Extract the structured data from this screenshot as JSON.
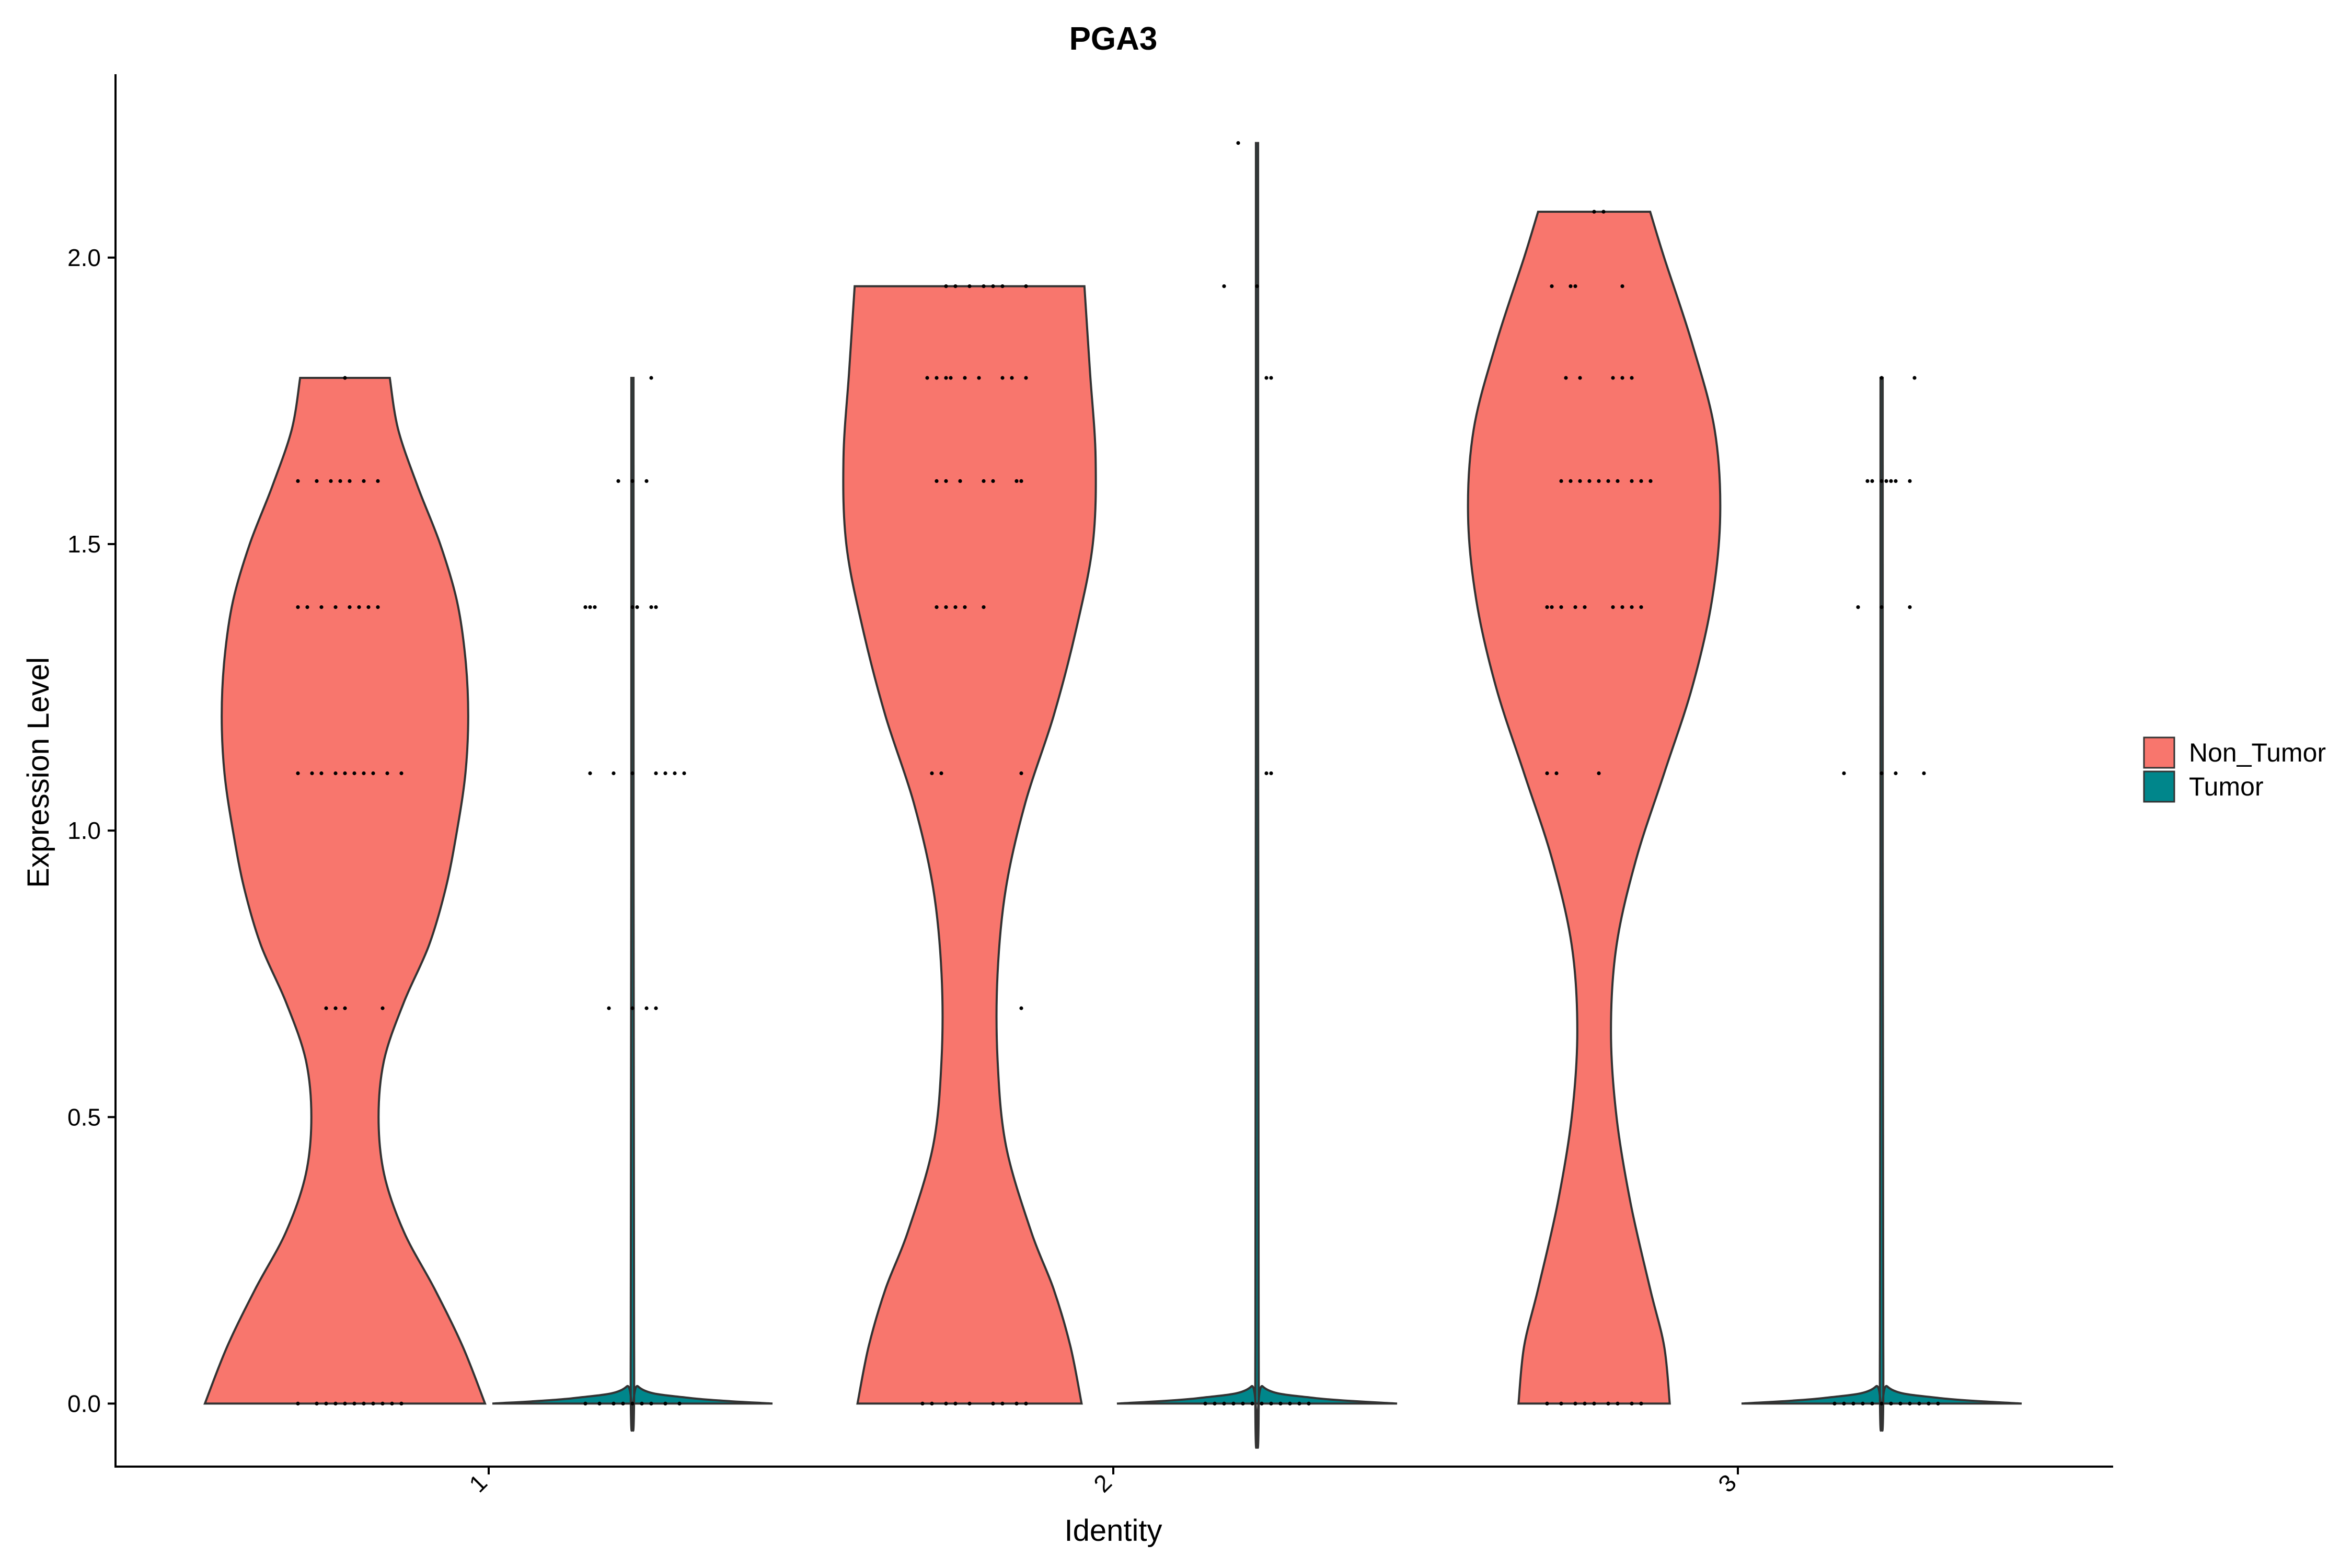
{
  "chart_data": {
    "type": "violin",
    "title": "PGA3",
    "xlabel": "Identity",
    "ylabel": "Expression Level",
    "categories": [
      "1",
      "2",
      "3"
    ],
    "yticks": [
      "0.0",
      "0.5",
      "1.0",
      "1.5",
      "2.0"
    ],
    "ylim": [
      -0.11,
      2.32
    ],
    "grid": false,
    "legend_position": "right",
    "legend": [
      {
        "name": "Non_Tumor",
        "color": "#F8766D"
      },
      {
        "name": "Tumor",
        "color": "#00868B"
      }
    ],
    "groups": [
      {
        "category": "1",
        "series": "Non_Tumor",
        "max": 1.79,
        "density": [
          [
            0.0,
            0.5
          ],
          [
            0.1,
            0.42
          ],
          [
            0.2,
            0.32
          ],
          [
            0.3,
            0.21
          ],
          [
            0.4,
            0.14
          ],
          [
            0.5,
            0.12
          ],
          [
            0.6,
            0.14
          ],
          [
            0.7,
            0.21
          ],
          [
            0.8,
            0.3
          ],
          [
            0.9,
            0.36
          ],
          [
            1.0,
            0.4
          ],
          [
            1.1,
            0.43
          ],
          [
            1.2,
            0.44
          ],
          [
            1.3,
            0.43
          ],
          [
            1.4,
            0.4
          ],
          [
            1.5,
            0.34
          ],
          [
            1.6,
            0.26
          ],
          [
            1.7,
            0.19
          ],
          [
            1.79,
            0.16
          ]
        ],
        "points": [
          [
            0.0,
            -0.1
          ],
          [
            0.0,
            -0.06
          ],
          [
            0.0,
            -0.04
          ],
          [
            0.0,
            -0.02
          ],
          [
            0.0,
            0.0
          ],
          [
            0.0,
            0.02
          ],
          [
            0.0,
            0.04
          ],
          [
            0.0,
            0.06
          ],
          [
            0.0,
            0.08
          ],
          [
            0.0,
            0.1
          ],
          [
            0.0,
            0.12
          ],
          [
            0.69,
            -0.04
          ],
          [
            0.69,
            -0.02
          ],
          [
            0.69,
            0.0
          ],
          [
            0.69,
            0.08
          ],
          [
            1.1,
            -0.1
          ],
          [
            1.1,
            -0.07
          ],
          [
            1.1,
            -0.05
          ],
          [
            1.1,
            -0.02
          ],
          [
            1.1,
            0.0
          ],
          [
            1.1,
            0.02
          ],
          [
            1.1,
            0.04
          ],
          [
            1.1,
            0.06
          ],
          [
            1.1,
            0.09
          ],
          [
            1.1,
            0.12
          ],
          [
            1.39,
            -0.1
          ],
          [
            1.39,
            -0.08
          ],
          [
            1.39,
            -0.05
          ],
          [
            1.39,
            -0.02
          ],
          [
            1.39,
            0.01
          ],
          [
            1.39,
            0.03
          ],
          [
            1.39,
            0.05
          ],
          [
            1.39,
            0.07
          ],
          [
            1.61,
            -0.1
          ],
          [
            1.61,
            -0.06
          ],
          [
            1.61,
            -0.03
          ],
          [
            1.61,
            -0.01
          ],
          [
            1.61,
            0.01
          ],
          [
            1.61,
            0.04
          ],
          [
            1.61,
            0.07
          ],
          [
            1.79,
            0.0
          ]
        ]
      },
      {
        "category": "1",
        "series": "Tumor",
        "max": 1.79,
        "density": [
          [
            0.0,
            0.5
          ],
          [
            0.01,
            0.2
          ],
          [
            0.03,
            0.02
          ],
          [
            0.1,
            0.006
          ],
          [
            1.79,
            0.004
          ]
        ],
        "points": [
          [
            0.0,
            -0.1
          ],
          [
            0.0,
            -0.07
          ],
          [
            0.0,
            -0.04
          ],
          [
            0.0,
            -0.02
          ],
          [
            0.0,
            0.0
          ],
          [
            0.0,
            0.02
          ],
          [
            0.0,
            0.04
          ],
          [
            0.0,
            0.07
          ],
          [
            0.0,
            0.1
          ],
          [
            0.69,
            -0.05
          ],
          [
            0.69,
            0.0
          ],
          [
            0.69,
            0.03
          ],
          [
            0.69,
            0.05
          ],
          [
            1.1,
            -0.09
          ],
          [
            1.1,
            -0.04
          ],
          [
            1.1,
            0.0
          ],
          [
            1.1,
            0.05
          ],
          [
            1.1,
            0.07
          ],
          [
            1.1,
            0.09
          ],
          [
            1.1,
            0.11
          ],
          [
            1.39,
            -0.1
          ],
          [
            1.39,
            -0.09
          ],
          [
            1.39,
            -0.08
          ],
          [
            1.39,
            0.0
          ],
          [
            1.39,
            0.01
          ],
          [
            1.39,
            0.04
          ],
          [
            1.39,
            0.05
          ],
          [
            1.61,
            -0.03
          ],
          [
            1.61,
            0.0
          ],
          [
            1.61,
            0.03
          ],
          [
            1.79,
            0.04
          ]
        ]
      },
      {
        "category": "2",
        "series": "Non_Tumor",
        "max": 1.95,
        "density": [
          [
            0.0,
            0.4
          ],
          [
            0.1,
            0.36
          ],
          [
            0.2,
            0.3
          ],
          [
            0.3,
            0.22
          ],
          [
            0.45,
            0.13
          ],
          [
            0.6,
            0.1
          ],
          [
            0.75,
            0.1
          ],
          [
            0.9,
            0.13
          ],
          [
            1.05,
            0.2
          ],
          [
            1.2,
            0.3
          ],
          [
            1.35,
            0.38
          ],
          [
            1.5,
            0.44
          ],
          [
            1.65,
            0.45
          ],
          [
            1.8,
            0.43
          ],
          [
            1.95,
            0.41
          ]
        ],
        "points": [
          [
            0.0,
            -0.1
          ],
          [
            0.0,
            -0.08
          ],
          [
            0.0,
            -0.05
          ],
          [
            0.0,
            -0.03
          ],
          [
            0.0,
            0.0
          ],
          [
            0.0,
            0.05
          ],
          [
            0.0,
            0.07
          ],
          [
            0.0,
            0.1
          ],
          [
            0.0,
            0.12
          ],
          [
            0.69,
            0.11
          ],
          [
            1.1,
            -0.08
          ],
          [
            1.1,
            -0.06
          ],
          [
            1.1,
            0.11
          ],
          [
            1.39,
            -0.07
          ],
          [
            1.39,
            -0.05
          ],
          [
            1.39,
            -0.03
          ],
          [
            1.39,
            -0.01
          ],
          [
            1.39,
            0.03
          ],
          [
            1.61,
            -0.07
          ],
          [
            1.61,
            -0.05
          ],
          [
            1.61,
            -0.02
          ],
          [
            1.61,
            0.03
          ],
          [
            1.61,
            0.05
          ],
          [
            1.61,
            0.1
          ],
          [
            1.61,
            0.11
          ],
          [
            1.79,
            -0.09
          ],
          [
            1.79,
            -0.07
          ],
          [
            1.79,
            -0.05
          ],
          [
            1.79,
            -0.04
          ],
          [
            1.79,
            -0.01
          ],
          [
            1.79,
            0.02
          ],
          [
            1.79,
            0.07
          ],
          [
            1.79,
            0.09
          ],
          [
            1.79,
            0.12
          ],
          [
            1.95,
            -0.05
          ],
          [
            1.95,
            -0.03
          ],
          [
            1.95,
            0.0
          ],
          [
            1.95,
            0.03
          ],
          [
            1.95,
            0.05
          ],
          [
            1.95,
            0.07
          ],
          [
            1.95,
            0.12
          ]
        ]
      },
      {
        "category": "2",
        "series": "Tumor",
        "max": 2.2,
        "density": [
          [
            0.0,
            0.5
          ],
          [
            0.01,
            0.2
          ],
          [
            0.03,
            0.02
          ],
          [
            0.1,
            0.006
          ],
          [
            2.2,
            0.004
          ]
        ],
        "points": [
          [
            0.0,
            -0.11
          ],
          [
            0.0,
            -0.09
          ],
          [
            0.0,
            -0.07
          ],
          [
            0.0,
            -0.05
          ],
          [
            0.0,
            -0.03
          ],
          [
            0.0,
            -0.01
          ],
          [
            0.0,
            0.01
          ],
          [
            0.0,
            0.03
          ],
          [
            0.0,
            0.05
          ],
          [
            0.0,
            0.07
          ],
          [
            0.0,
            0.09
          ],
          [
            0.0,
            0.11
          ],
          [
            1.1,
            0.02
          ],
          [
            1.1,
            0.03
          ],
          [
            1.79,
            0.02
          ],
          [
            1.79,
            0.03
          ],
          [
            1.95,
            -0.07
          ],
          [
            1.95,
            0.0
          ],
          [
            2.2,
            -0.04
          ]
        ]
      },
      {
        "category": "3",
        "series": "Non_Tumor",
        "max": 2.08,
        "density": [
          [
            0.0,
            0.27
          ],
          [
            0.1,
            0.25
          ],
          [
            0.2,
            0.2
          ],
          [
            0.35,
            0.13
          ],
          [
            0.5,
            0.08
          ],
          [
            0.65,
            0.06
          ],
          [
            0.8,
            0.08
          ],
          [
            0.95,
            0.15
          ],
          [
            1.1,
            0.25
          ],
          [
            1.25,
            0.35
          ],
          [
            1.4,
            0.42
          ],
          [
            1.55,
            0.45
          ],
          [
            1.7,
            0.43
          ],
          [
            1.85,
            0.35
          ],
          [
            2.0,
            0.25
          ],
          [
            2.08,
            0.2
          ]
        ],
        "points": [
          [
            0.0,
            -0.1
          ],
          [
            0.0,
            -0.07
          ],
          [
            0.0,
            -0.04
          ],
          [
            0.0,
            -0.02
          ],
          [
            0.0,
            0.0
          ],
          [
            0.0,
            0.03
          ],
          [
            0.0,
            0.05
          ],
          [
            0.0,
            0.08
          ],
          [
            0.0,
            0.1
          ],
          [
            1.1,
            -0.1
          ],
          [
            1.1,
            -0.08
          ],
          [
            1.1,
            0.01
          ],
          [
            1.39,
            -0.1
          ],
          [
            1.39,
            -0.09
          ],
          [
            1.39,
            -0.07
          ],
          [
            1.39,
            -0.04
          ],
          [
            1.39,
            -0.02
          ],
          [
            1.39,
            0.04
          ],
          [
            1.39,
            0.06
          ],
          [
            1.39,
            0.08
          ],
          [
            1.39,
            0.1
          ],
          [
            1.61,
            -0.07
          ],
          [
            1.61,
            -0.05
          ],
          [
            1.61,
            -0.03
          ],
          [
            1.61,
            -0.01
          ],
          [
            1.61,
            0.01
          ],
          [
            1.61,
            0.03
          ],
          [
            1.61,
            0.05
          ],
          [
            1.61,
            0.08
          ],
          [
            1.61,
            0.1
          ],
          [
            1.61,
            0.12
          ],
          [
            1.79,
            -0.06
          ],
          [
            1.79,
            -0.03
          ],
          [
            1.79,
            0.04
          ],
          [
            1.79,
            0.06
          ],
          [
            1.79,
            0.08
          ],
          [
            1.95,
            -0.09
          ],
          [
            1.95,
            -0.05
          ],
          [
            1.95,
            -0.04
          ],
          [
            1.95,
            0.06
          ],
          [
            2.08,
            0.0
          ],
          [
            2.08,
            0.02
          ]
        ]
      },
      {
        "category": "3",
        "series": "Tumor",
        "max": 1.79,
        "density": [
          [
            0.0,
            0.5
          ],
          [
            0.01,
            0.2
          ],
          [
            0.03,
            0.02
          ],
          [
            0.1,
            0.006
          ],
          [
            1.79,
            0.004
          ]
        ],
        "points": [
          [
            0.0,
            -0.1
          ],
          [
            0.0,
            -0.08
          ],
          [
            0.0,
            -0.06
          ],
          [
            0.0,
            -0.04
          ],
          [
            0.0,
            -0.02
          ],
          [
            0.0,
            0.0
          ],
          [
            0.0,
            0.02
          ],
          [
            0.0,
            0.04
          ],
          [
            0.0,
            0.06
          ],
          [
            0.0,
            0.08
          ],
          [
            0.0,
            0.1
          ],
          [
            0.0,
            0.12
          ],
          [
            1.1,
            -0.08
          ],
          [
            1.1,
            0.0
          ],
          [
            1.1,
            0.03
          ],
          [
            1.1,
            0.09
          ],
          [
            1.39,
            -0.05
          ],
          [
            1.39,
            0.0
          ],
          [
            1.39,
            0.06
          ],
          [
            1.61,
            -0.03
          ],
          [
            1.61,
            -0.02
          ],
          [
            1.61,
            0.0
          ],
          [
            1.61,
            0.01
          ],
          [
            1.61,
            0.02
          ],
          [
            1.61,
            0.03
          ],
          [
            1.61,
            0.06
          ],
          [
            1.79,
            0.0
          ],
          [
            1.79,
            0.07
          ]
        ]
      }
    ]
  }
}
